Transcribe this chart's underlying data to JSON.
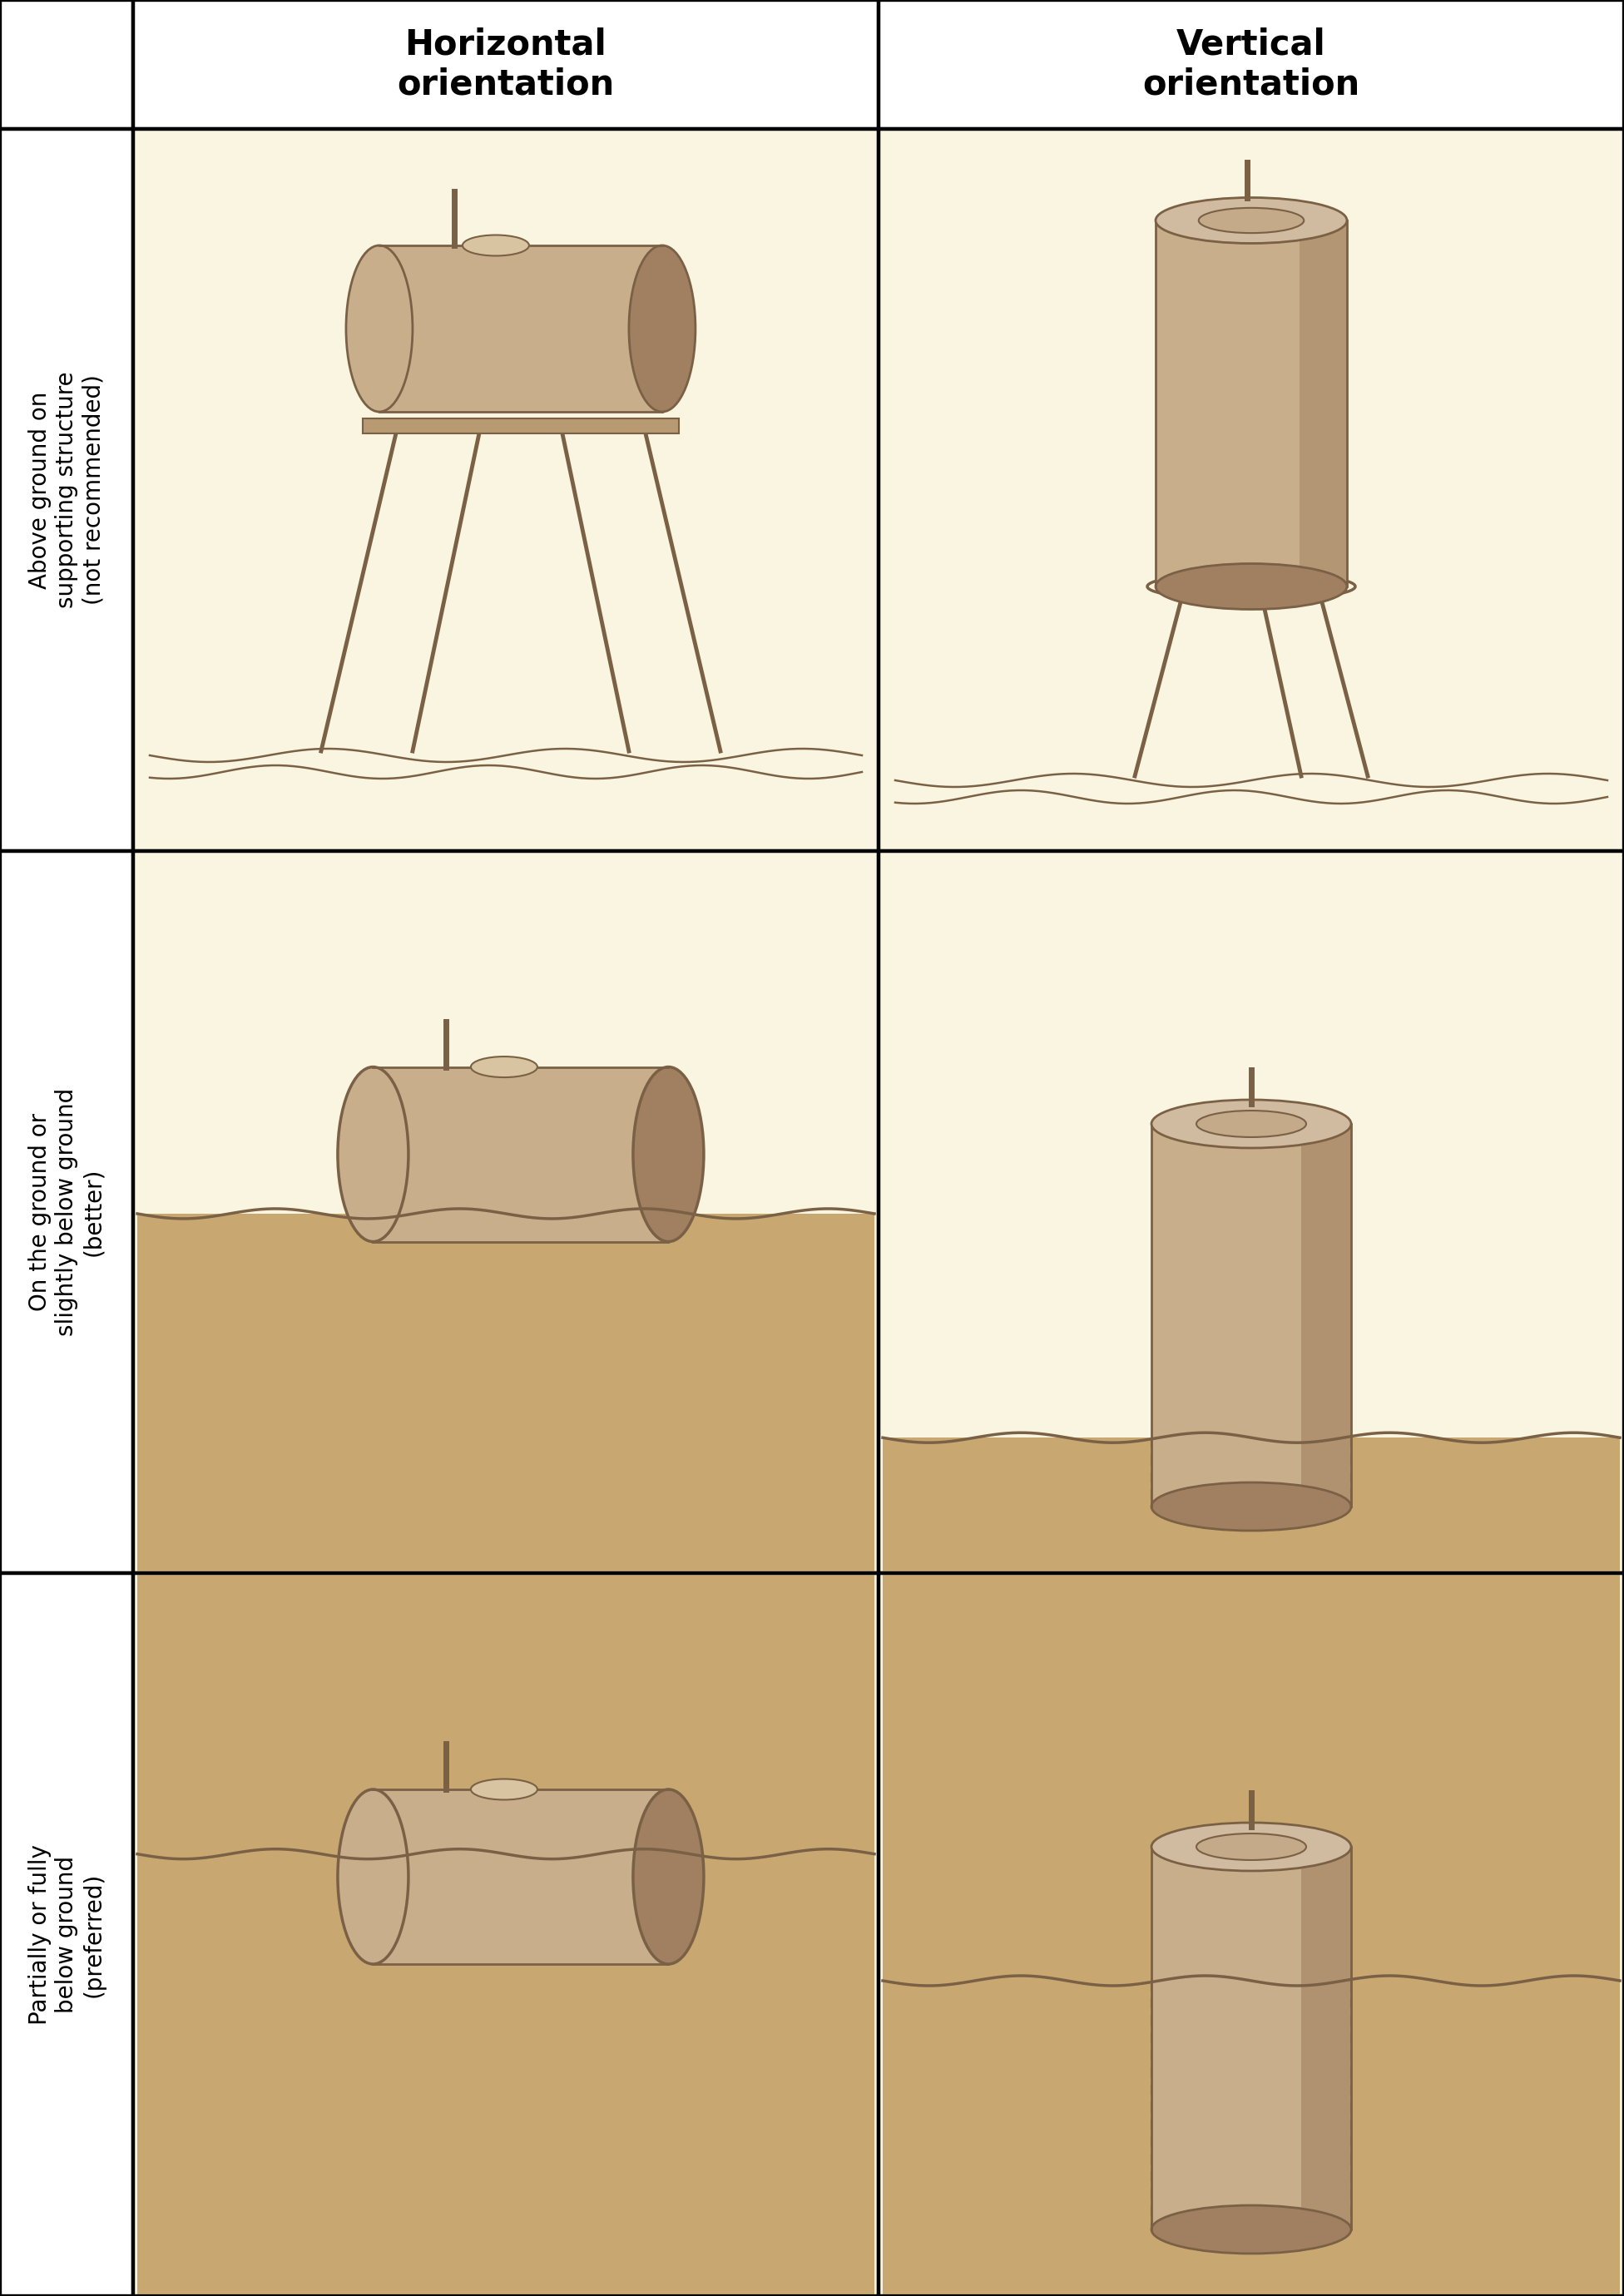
{
  "col_headers": [
    "Horizontal\norientation",
    "Vertical\norientation"
  ],
  "row_labels": [
    "Above ground on\nsupporting structure\n(not recommended)",
    "On the ground or\nslightly below ground\n(better)",
    "Partially or fully\nbelow ground\n(preferred)"
  ],
  "bg_color": "#FFFFFF",
  "cell_bg": "#FAF5E0",
  "tank_fill_light": "#C8AE8A",
  "tank_fill_mid": "#B89A72",
  "tank_fill_dark": "#A08060",
  "tank_stroke": "#7A6045",
  "ground_fill": "#C8A870",
  "ground_line": "#7A6045",
  "header_bg": "#FFFFFF",
  "label_bg": "#FFFFFF",
  "border_color": "#000000",
  "font_size_header": 30,
  "font_size_label": 20
}
